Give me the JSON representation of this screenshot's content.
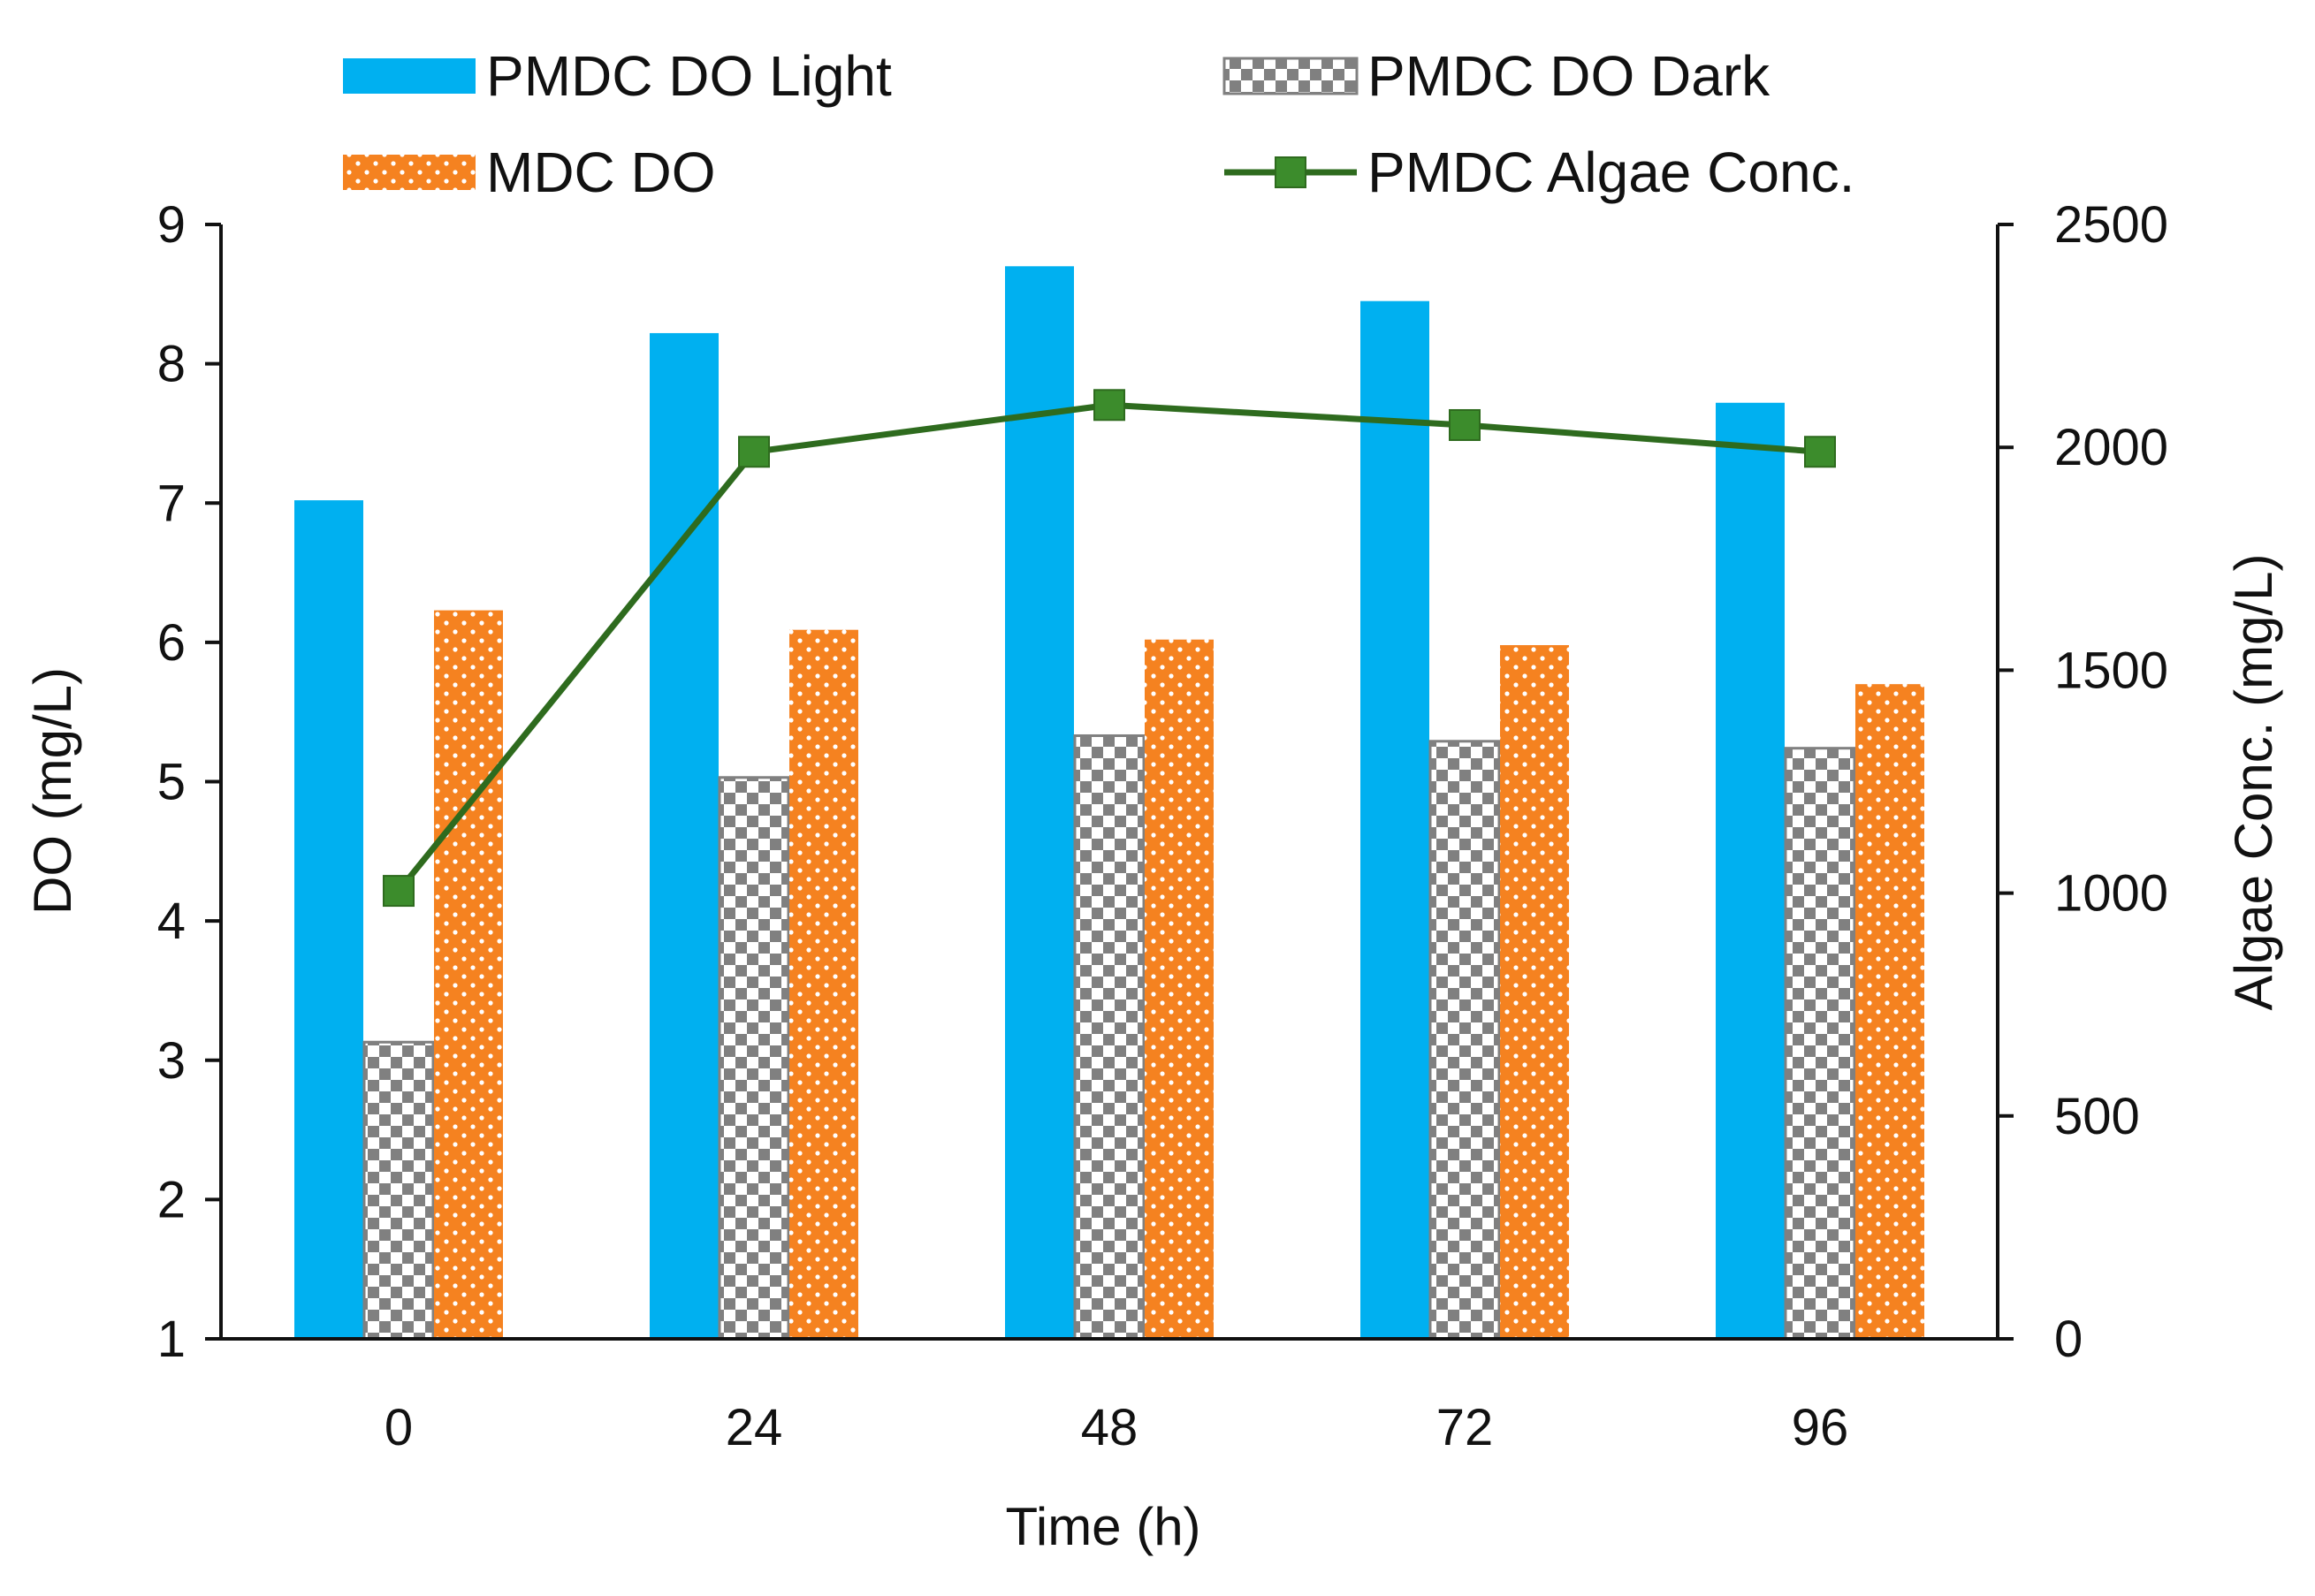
{
  "chart_data": {
    "type": "bar",
    "categories": [
      "0",
      "24",
      "48",
      "72",
      "96"
    ],
    "xlabel": "Time (h)",
    "ylabel": "DO (mg/L)",
    "y2label": "Algae Conc. (mg/L)",
    "ylim": [
      1,
      9
    ],
    "y2lim": [
      0,
      2500
    ],
    "yticks": [
      "1",
      "2",
      "3",
      "4",
      "5",
      "6",
      "7",
      "8",
      "9"
    ],
    "y2ticks": [
      "0",
      "500",
      "1000",
      "1500",
      "2000",
      "2500"
    ],
    "grid": false,
    "legend_position": "top",
    "series": [
      {
        "name": "PMDC DO Light",
        "kind": "bar",
        "axis": "left",
        "color": "#00b0f0",
        "pattern": "solid",
        "values": [
          7.02,
          8.22,
          8.7,
          8.45,
          7.72
        ]
      },
      {
        "name": "PMDC DO Dark",
        "kind": "bar",
        "axis": "left",
        "color": "#808080",
        "pattern": "checker",
        "values": [
          3.13,
          5.03,
          5.33,
          5.29,
          5.24
        ]
      },
      {
        "name": "MDC DO",
        "kind": "bar",
        "axis": "left",
        "color": "#f58220",
        "pattern": "dots",
        "values": [
          6.23,
          6.09,
          6.02,
          5.98,
          5.7
        ]
      },
      {
        "name": "PMDC Algae Conc.",
        "kind": "line",
        "axis": "right",
        "color": "#2e6b1e",
        "marker": "square",
        "markerColor": "#3c8c2c",
        "values": [
          1005,
          1990,
          2095,
          2050,
          1990
        ]
      }
    ]
  }
}
